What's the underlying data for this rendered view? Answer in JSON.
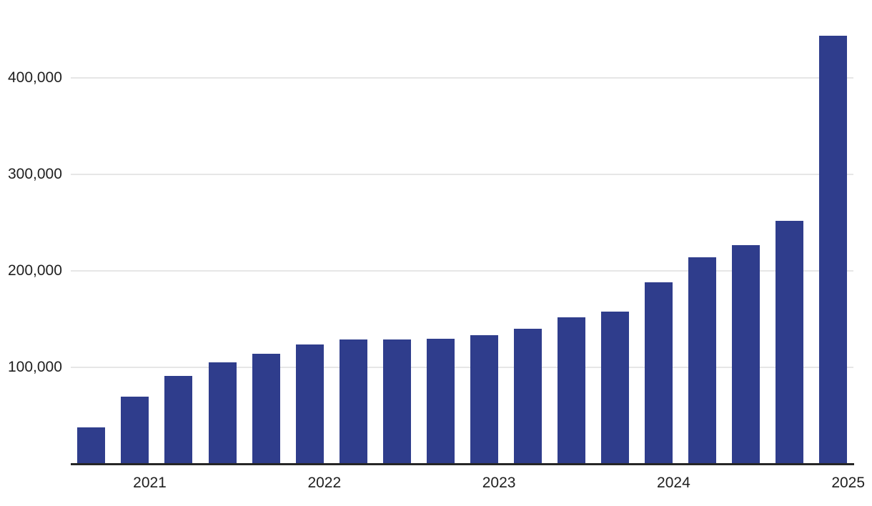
{
  "chart_data": {
    "type": "bar",
    "title": "",
    "values": [
      38000,
      70000,
      91000,
      105000,
      114000,
      124000,
      129000,
      129000,
      130000,
      133000,
      140000,
      152000,
      158000,
      188000,
      214000,
      227000,
      252000,
      444000
    ],
    "bar_count": 18,
    "x_tick_labels": [
      "2021",
      "2022",
      "2023",
      "2024",
      "2025"
    ],
    "y_tick_labels": [
      "100,000",
      "200,000",
      "300,000",
      "400,000"
    ],
    "y_tick_values": [
      100000,
      200000,
      300000,
      400000
    ],
    "ylim": [
      0,
      460000
    ],
    "grid": "horizontal",
    "legend": "none",
    "colors": {
      "bar": "#2F3D8C",
      "gridline": "#E6E6E6",
      "axis_line": "#262626",
      "tick_text": "#1F1F1F",
      "background": "#FFFFFF"
    }
  }
}
